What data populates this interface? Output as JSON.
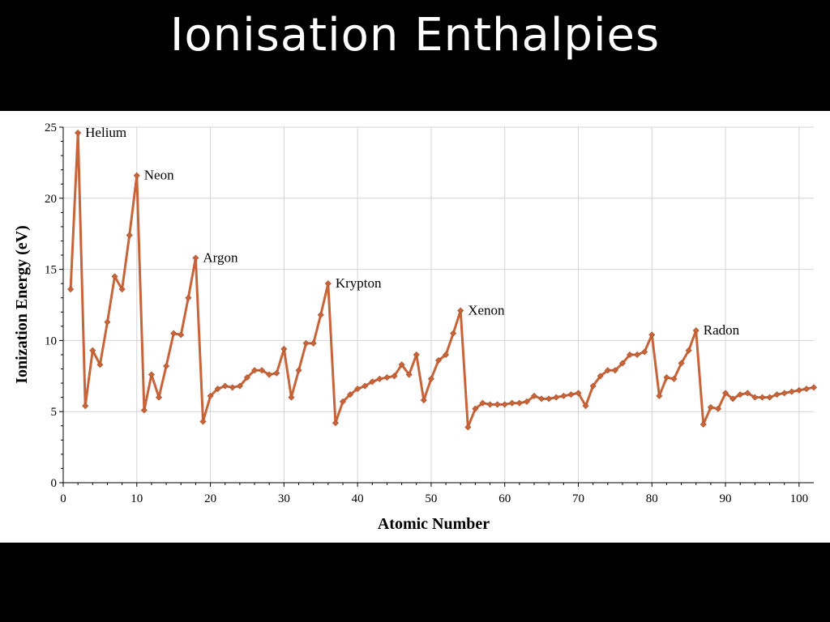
{
  "slide": {
    "title": "Ionisation Enthalpies"
  },
  "chart_data": {
    "type": "line",
    "xlabel": "Atomic Number",
    "ylabel": "Ionization Energy (eV)",
    "xlim": [
      0,
      102
    ],
    "ylim": [
      0,
      25
    ],
    "xticks": [
      0,
      10,
      20,
      30,
      40,
      50,
      60,
      70,
      80,
      90,
      100
    ],
    "yticks": [
      0,
      5,
      10,
      15,
      20,
      25
    ],
    "grid": true,
    "colors": {
      "line": "#c8643a",
      "marker": "#c8643a",
      "grid": "#d4d4d4"
    },
    "series": [
      {
        "x": [
          1,
          2,
          3,
          4,
          5,
          6,
          7,
          8,
          9,
          10,
          11,
          12,
          13,
          14,
          15,
          16,
          17,
          18,
          19,
          20,
          21,
          22,
          23,
          24,
          25,
          26,
          27,
          28,
          29,
          30,
          31,
          32,
          33,
          34,
          35,
          36,
          37,
          38,
          39,
          40,
          41,
          42,
          43,
          44,
          45,
          46,
          47,
          48,
          49,
          50,
          51,
          52,
          53,
          54,
          55,
          56,
          57,
          58,
          59,
          60,
          61,
          62,
          63,
          64,
          65,
          66,
          67,
          68,
          69,
          70,
          71,
          72,
          73,
          74,
          75,
          76,
          77,
          78,
          79,
          80,
          81,
          82,
          83,
          84,
          85,
          86,
          87,
          88,
          89,
          90,
          91,
          92,
          93,
          94,
          95,
          96,
          97,
          98,
          99,
          100,
          101,
          102
        ],
        "values": [
          13.6,
          24.6,
          5.4,
          9.3,
          8.3,
          11.3,
          14.5,
          13.6,
          17.4,
          21.6,
          5.1,
          7.6,
          6.0,
          8.2,
          10.5,
          10.4,
          13.0,
          15.8,
          4.3,
          6.1,
          6.6,
          6.8,
          6.7,
          6.8,
          7.4,
          7.9,
          7.9,
          7.6,
          7.7,
          9.4,
          6.0,
          7.9,
          9.8,
          9.8,
          11.8,
          14.0,
          4.2,
          5.7,
          6.2,
          6.6,
          6.8,
          7.1,
          7.3,
          7.4,
          7.5,
          8.3,
          7.6,
          9.0,
          5.8,
          7.3,
          8.6,
          9.0,
          10.5,
          12.1,
          3.9,
          5.2,
          5.6,
          5.5,
          5.5,
          5.5,
          5.6,
          5.6,
          5.7,
          6.1,
          5.9,
          5.9,
          6.0,
          6.1,
          6.2,
          6.3,
          5.4,
          6.8,
          7.5,
          7.9,
          7.9,
          8.4,
          9.0,
          9.0,
          9.2,
          10.4,
          6.1,
          7.4,
          7.3,
          8.4,
          9.3,
          10.7,
          4.1,
          5.3,
          5.2,
          6.3,
          5.9,
          6.2,
          6.3,
          6.0,
          6.0,
          6.0,
          6.2,
          6.3,
          6.4,
          6.5,
          6.6,
          6.7
        ]
      }
    ],
    "annotations": [
      {
        "text": "Helium",
        "x": 2,
        "y": 24.6
      },
      {
        "text": "Neon",
        "x": 10,
        "y": 21.6
      },
      {
        "text": "Argon",
        "x": 18,
        "y": 15.8
      },
      {
        "text": "Krypton",
        "x": 36,
        "y": 14.0
      },
      {
        "text": "Xenon",
        "x": 54,
        "y": 12.1
      },
      {
        "text": "Radon",
        "x": 86,
        "y": 10.7
      }
    ]
  }
}
